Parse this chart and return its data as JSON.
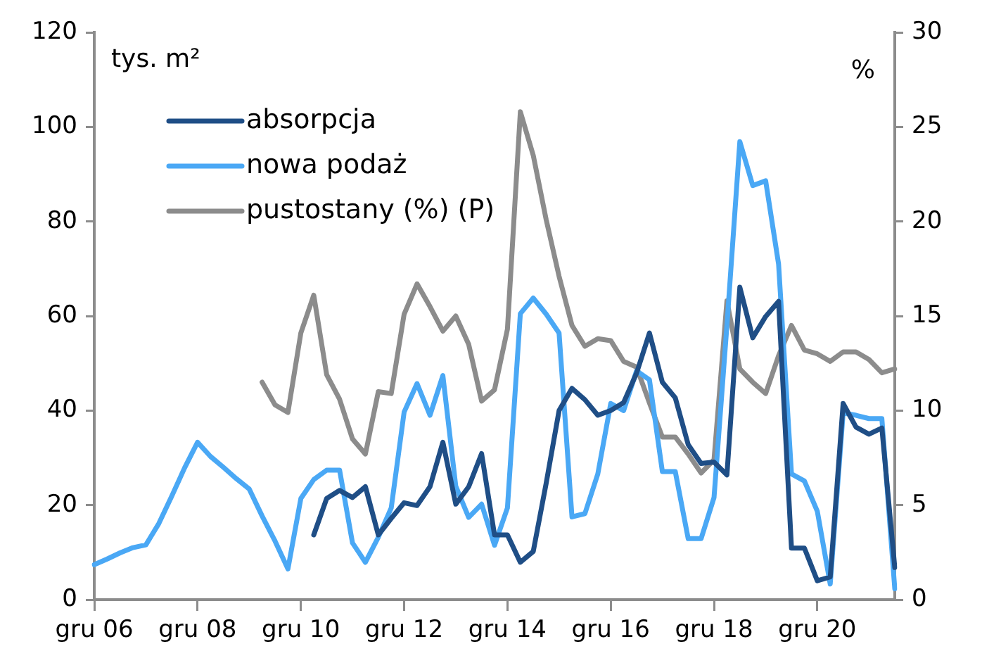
{
  "chart_data": {
    "type": "line",
    "ylabel": "tys. m²",
    "y2label": "%",
    "categories": [
      "gru 06",
      null,
      null,
      null,
      null,
      null,
      null,
      null,
      "gru 08",
      null,
      null,
      null,
      null,
      null,
      null,
      null,
      "gru 10",
      null,
      null,
      null,
      null,
      null,
      null,
      null,
      "gru 12",
      null,
      null,
      null,
      null,
      null,
      null,
      null,
      "gru 14",
      null,
      null,
      null,
      null,
      null,
      null,
      null,
      "gru 16",
      null,
      null,
      null,
      null,
      null,
      null,
      null,
      "gru 18",
      null,
      null,
      null,
      null,
      null,
      null,
      null,
      "gru 20",
      null,
      null,
      null,
      null,
      null,
      null
    ],
    "series": [
      {
        "name": "absorpcja",
        "color": "#1f4e86",
        "values": [
          null,
          null,
          null,
          null,
          null,
          null,
          null,
          null,
          null,
          null,
          null,
          null,
          null,
          null,
          null,
          null,
          null,
          13.7,
          21.4,
          23.1,
          21.6,
          23.9,
          13.7,
          17.2,
          20.5,
          19.9,
          23.9,
          33.3,
          20.2,
          23.9,
          30.9,
          13.7,
          13.7,
          7.9,
          10.2,
          24.6,
          40.0,
          44.7,
          42.3,
          39.0,
          40.0,
          41.7,
          47.9,
          56.4,
          46.0,
          42.7,
          32.8,
          28.8,
          29.1,
          26.4,
          66.1,
          55.4,
          59.9,
          63.1,
          10.9,
          10.9,
          4.0,
          4.8,
          41.5,
          36.5,
          35.0,
          36.3,
          6.8
        ]
      },
      {
        "name": "nowa podaż",
        "color": "#4aa8f5",
        "values": [
          7.4,
          8.6,
          9.9,
          11.0,
          11.6,
          16.1,
          21.9,
          27.9,
          33.3,
          30.3,
          28.0,
          25.6,
          23.4,
          17.7,
          12.4,
          6.5,
          21.4,
          25.4,
          27.4,
          27.4,
          12.0,
          7.9,
          13.2,
          19.4,
          39.7,
          45.7,
          39.0,
          47.4,
          24.0,
          17.4,
          20.2,
          11.5,
          19.4,
          60.5,
          63.8,
          60.4,
          56.4,
          17.5,
          18.2,
          26.6,
          41.5,
          40.0,
          48.4,
          46.5,
          27.1,
          27.1,
          12.9,
          12.9,
          21.6,
          58.0,
          96.9,
          87.6,
          88.6,
          71.0,
          26.6,
          25.1,
          18.7,
          3.3,
          39.5,
          39.0,
          38.3,
          38.3,
          2.3
        ]
      },
      {
        "name": "pustostany (%) (P)",
        "color": "#8c8c8c",
        "axis": "y2",
        "values": [
          null,
          null,
          null,
          null,
          null,
          null,
          null,
          null,
          null,
          null,
          null,
          null,
          null,
          11.5,
          10.3,
          9.9,
          14.1,
          16.1,
          11.9,
          10.6,
          8.5,
          7.7,
          11.0,
          10.9,
          15.1,
          16.7,
          15.5,
          14.2,
          15.0,
          13.5,
          10.5,
          11.1,
          14.3,
          25.8,
          23.5,
          20.1,
          17.1,
          14.5,
          13.4,
          13.8,
          13.7,
          12.6,
          12.3,
          10.4,
          8.6,
          8.6,
          7.7,
          6.7,
          7.4,
          15.8,
          12.2,
          11.5,
          10.9,
          12.9,
          14.5,
          13.2,
          13.0,
          12.6,
          13.1,
          13.1,
          12.7,
          12.0,
          12.2
        ]
      }
    ],
    "ylim": [
      0,
      120
    ],
    "yticks": [
      0,
      20,
      40,
      60,
      80,
      100,
      120
    ],
    "y2lim": [
      0,
      30
    ],
    "y2ticks": [
      0,
      5,
      10,
      15,
      20,
      25,
      30
    ],
    "grid": false,
    "legend": "top left",
    "marker": "none",
    "line_style": "solid"
  }
}
